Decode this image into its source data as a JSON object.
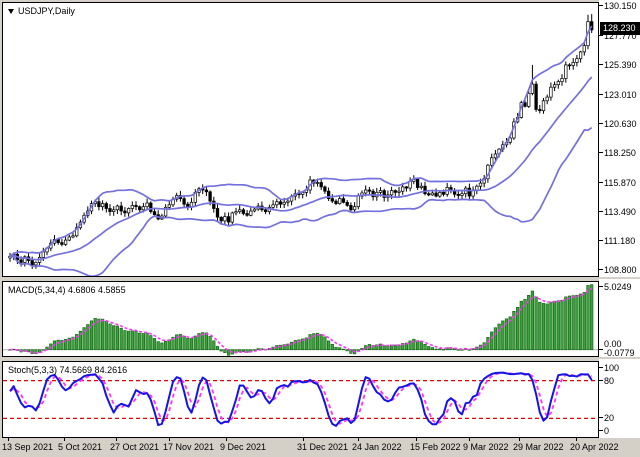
{
  "chart": {
    "symbol_label": "USDJPY,Daily",
    "colors": {
      "band": "#7470dd",
      "candle_stroke": "#000000",
      "candle_up_fill": "#ffffff",
      "candle_down_fill": "#000000",
      "macd_fill": "#3da03d",
      "macd_stroke": "#0c640c",
      "signal": "#ff33ff",
      "stoch_k": "#1414e8",
      "stoch_d": "#ff33ff",
      "level": "#e00000",
      "price_tag_bg": "#000000",
      "price_tag_text": "#ffffff"
    }
  },
  "indicators": {
    "macd_label": "MACD(5,34,4) 4.6806 4.5855",
    "stoch_label": "Stoch(5,3,3) 74.5669 84.2616"
  },
  "chart_data": [
    {
      "type": "candlestick",
      "symbol": "USDJPY",
      "timeframe": "Daily",
      "title": "USDJPY,Daily",
      "ylim": [
        108.35,
        130.4
      ],
      "y_tick_labels": [
        "130.150",
        "127.770",
        "125.390",
        "123.010",
        "120.630",
        "118.250",
        "115.870",
        "113.490",
        "111.180",
        "108.800"
      ],
      "current_price": 128.23,
      "current_price_label": "128.230",
      "x_tick_labels": [
        "13 Sep 2021",
        "5 Oct 2021",
        "27 Oct 2021",
        "17 Nov 2021",
        "9 Dec 2021",
        "31 Dec 2021",
        "24 Jan 2022",
        "15 Feb 2022",
        "9 Mar 2022",
        "29 Mar 2022",
        "20 Apr 2022"
      ],
      "overlays": [
        {
          "name": "Bollinger Bands",
          "settings": "(20,2)",
          "color": "#7470dd"
        }
      ],
      "first_open": 109.8,
      "close": [
        109.95,
        110.1,
        109.65,
        109.45,
        109.9,
        109.6,
        109.25,
        109.45,
        109.85,
        110.3,
        110.6,
        111.0,
        111.3,
        111.05,
        110.9,
        111.25,
        111.5,
        111.6,
        112.25,
        112.7,
        113.25,
        113.6,
        114.2,
        114.35,
        113.95,
        114.2,
        113.8,
        113.55,
        113.7,
        114.0,
        113.6,
        113.45,
        113.8,
        114.05,
        113.95,
        113.7,
        113.95,
        114.25,
        113.55,
        113.3,
        112.95,
        113.2,
        113.9,
        114.1,
        114.55,
        114.85,
        114.6,
        114.15,
        113.95,
        114.3,
        115.1,
        115.4,
        115.3,
        115.15,
        114.4,
        113.8,
        113.1,
        112.8,
        113.15,
        112.7,
        113.45,
        113.55,
        113.7,
        113.4,
        113.25,
        113.6,
        113.75,
        114.0,
        113.7,
        113.55,
        113.9,
        114.1,
        114.35,
        114.15,
        114.3,
        114.4,
        114.8,
        115.0,
        114.95,
        115.1,
        115.3,
        116.1,
        115.85,
        115.9,
        115.55,
        115.2,
        114.6,
        114.4,
        114.2,
        114.6,
        114.3,
        114.05,
        113.7,
        113.95,
        114.8,
        115.05,
        115.3,
        115.2,
        114.75,
        115.1,
        115.25,
        114.7,
        114.9,
        115.25,
        115.1,
        115.2,
        115.55,
        115.45,
        116.0,
        116.15,
        115.5,
        115.6,
        115.0,
        114.9,
        115.05,
        114.8,
        115.1,
        114.95,
        115.5,
        115.25,
        114.95,
        114.85,
        115.0,
        115.45,
        114.8,
        115.3,
        115.6,
        115.85,
        116.2,
        117.3,
        117.9,
        118.2,
        118.6,
        118.95,
        119.15,
        119.5,
        120.8,
        121.15,
        122.35,
        122.05,
        123.1,
        123.85,
        121.8,
        121.7,
        122.5,
        122.8,
        123.6,
        123.8,
        124.05,
        124.3,
        125.4,
        125.35,
        125.6,
        125.9,
        126.45,
        126.95,
        128.9,
        128.23
      ],
      "wick_overrides": {
        "141": 125.4,
        "156": 129.45,
        "157": 129.5
      }
    },
    {
      "type": "bar",
      "name": "MACD",
      "settings": "(5,34,4)",
      "current_values": [
        4.6806,
        4.5855
      ],
      "y_tick_labels": [
        "5.0249",
        "0.00",
        "-0.0779"
      ],
      "derived_from": "close series: histogram = EMA5 - EMA34, signal = EMA4 of histogram",
      "histogram_color": "#3da03d",
      "signal_color": "#ff33ff"
    },
    {
      "type": "line",
      "name": "Stochastic",
      "settings": "(5,3,3)",
      "current_values": [
        74.5669,
        84.2616
      ],
      "y_tick_labels": [
        "100",
        "80",
        "20",
        "0"
      ],
      "levels": [
        80,
        20
      ],
      "derived_from": "close/high/low series: %K = SMA3 of raw Stochastic(5), %D = SMA3 of %K",
      "k_color": "#1414e8",
      "d_color": "#ff33ff",
      "level_color": "#e00000"
    }
  ]
}
